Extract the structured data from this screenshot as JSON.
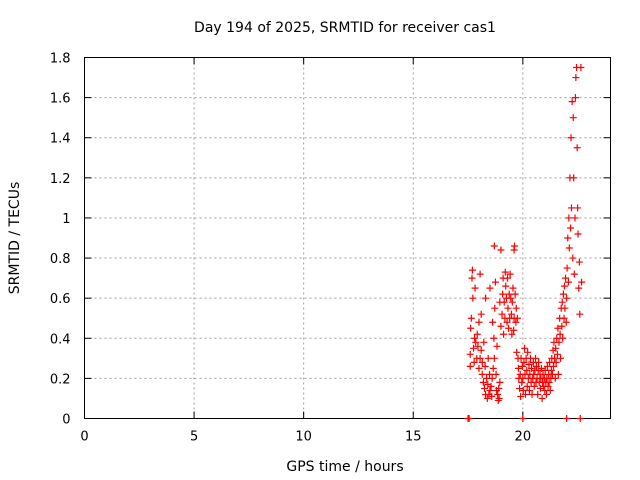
{
  "chart_data": {
    "type": "scatter",
    "title": "Day 194 of 2025, SRMTID for receiver cas1",
    "xlabel": "GPS time / hours",
    "ylabel": "SRMTID / TECUs",
    "xlim": [
      0,
      24
    ],
    "ylim": [
      0,
      1.8
    ],
    "xticks": [
      0,
      5,
      10,
      15,
      20
    ],
    "yticks": [
      0,
      0.2,
      0.4,
      0.6,
      0.8,
      1,
      1.2,
      1.4,
      1.6,
      1.8
    ],
    "xtick_labels": [
      "0",
      "5",
      "10",
      "15",
      "20"
    ],
    "ytick_labels": [
      "0",
      "0.2",
      "0.4",
      "0.6",
      "0.8",
      "1",
      "1.2",
      "1.4",
      "1.6",
      "1.8"
    ],
    "grid": true,
    "marker": "+",
    "series": [
      {
        "name": "cas1",
        "color": "#ff0000",
        "points": [
          [
            17.5,
            0.0
          ],
          [
            17.55,
            0.0
          ],
          [
            17.6,
            0.26
          ],
          [
            17.6,
            0.32
          ],
          [
            17.62,
            0.45
          ],
          [
            17.65,
            0.5
          ],
          [
            17.68,
            0.7
          ],
          [
            17.7,
            0.74
          ],
          [
            17.72,
            0.6
          ],
          [
            17.75,
            0.35
          ],
          [
            17.78,
            0.28
          ],
          [
            17.8,
            0.4
          ],
          [
            17.82,
            0.65
          ],
          [
            17.85,
            0.38
          ],
          [
            17.9,
            0.3
          ],
          [
            17.92,
            0.42
          ],
          [
            17.95,
            0.36
          ],
          [
            18.0,
            0.25
          ],
          [
            18.0,
            0.48
          ],
          [
            18.05,
            0.3
          ],
          [
            18.05,
            0.72
          ],
          [
            18.1,
            0.34
          ],
          [
            18.1,
            0.52
          ],
          [
            18.15,
            0.22
          ],
          [
            18.15,
            0.28
          ],
          [
            18.2,
            0.18
          ],
          [
            18.22,
            0.38
          ],
          [
            18.25,
            0.15
          ],
          [
            18.28,
            0.26
          ],
          [
            18.3,
            0.12
          ],
          [
            18.3,
            0.6
          ],
          [
            18.35,
            0.2
          ],
          [
            18.38,
            0.1
          ],
          [
            18.4,
            0.17
          ],
          [
            18.42,
            0.3
          ],
          [
            18.45,
            0.12
          ],
          [
            18.48,
            0.22
          ],
          [
            18.5,
            0.14
          ],
          [
            18.5,
            0.65
          ],
          [
            18.55,
            0.16
          ],
          [
            18.58,
            0.11
          ],
          [
            18.6,
            0.2
          ],
          [
            18.62,
            0.48
          ],
          [
            18.65,
            0.25
          ],
          [
            18.68,
            0.4
          ],
          [
            18.7,
            0.3
          ],
          [
            18.7,
            0.86
          ],
          [
            18.72,
            0.55
          ],
          [
            18.75,
            0.68
          ],
          [
            18.78,
            0.22
          ],
          [
            18.8,
            0.14
          ],
          [
            18.82,
            0.36
          ],
          [
            18.85,
            0.12
          ],
          [
            18.88,
            0.09
          ],
          [
            18.9,
            0.15
          ],
          [
            18.92,
            0.1
          ],
          [
            18.95,
            0.18
          ],
          [
            18.95,
            0.58
          ],
          [
            19.0,
            0.46
          ],
          [
            19.0,
            0.84
          ],
          [
            19.05,
            0.52
          ],
          [
            19.08,
            0.62
          ],
          [
            19.1,
            0.7
          ],
          [
            19.12,
            0.42
          ],
          [
            19.15,
            0.58
          ],
          [
            19.18,
            0.5
          ],
          [
            19.2,
            0.73
          ],
          [
            19.22,
            0.66
          ],
          [
            19.25,
            0.6
          ],
          [
            19.28,
            0.48
          ],
          [
            19.3,
            0.7
          ],
          [
            19.32,
            0.55
          ],
          [
            19.35,
            0.45
          ],
          [
            19.38,
            0.62
          ],
          [
            19.4,
            0.5
          ],
          [
            19.42,
            0.72
          ],
          [
            19.45,
            0.6
          ],
          [
            19.48,
            0.52
          ],
          [
            19.5,
            0.42
          ],
          [
            19.52,
            0.58
          ],
          [
            19.55,
            0.65
          ],
          [
            19.58,
            0.44
          ],
          [
            19.6,
            0.5
          ],
          [
            19.6,
            0.84
          ],
          [
            19.62,
            0.86
          ],
          [
            19.65,
            0.62
          ],
          [
            19.68,
            0.48
          ],
          [
            19.7,
            0.55
          ],
          [
            19.72,
            0.33
          ],
          [
            19.75,
            0.5
          ],
          [
            19.78,
            0.3
          ],
          [
            19.8,
            0.25
          ],
          [
            19.82,
            0.2
          ],
          [
            19.85,
            0.15
          ],
          [
            19.88,
            0.22
          ],
          [
            19.9,
            0.11
          ],
          [
            19.92,
            0.3
          ],
          [
            19.95,
            0.18
          ],
          [
            19.98,
            0.26
          ],
          [
            20.0,
            0.0
          ],
          [
            20.0,
            0.2
          ],
          [
            20.02,
            0.14
          ],
          [
            20.05,
            0.28
          ],
          [
            20.08,
            0.35
          ],
          [
            20.1,
            0.22
          ],
          [
            20.12,
            0.12
          ],
          [
            20.15,
            0.3
          ],
          [
            20.18,
            0.24
          ],
          [
            20.2,
            0.16
          ],
          [
            20.22,
            0.33
          ],
          [
            20.25,
            0.2
          ],
          [
            20.28,
            0.27
          ],
          [
            20.3,
            0.14
          ],
          [
            20.32,
            0.22
          ],
          [
            20.35,
            0.3
          ],
          [
            20.38,
            0.18
          ],
          [
            20.4,
            0.25
          ],
          [
            20.42,
            0.12
          ],
          [
            20.45,
            0.2
          ],
          [
            20.48,
            0.28
          ],
          [
            20.5,
            0.22
          ],
          [
            20.52,
            0.16
          ],
          [
            20.55,
            0.24
          ],
          [
            20.58,
            0.3
          ],
          [
            20.6,
            0.18
          ],
          [
            20.62,
            0.26
          ],
          [
            20.65,
            0.2
          ],
          [
            20.68,
            0.12
          ],
          [
            20.7,
            0.24
          ],
          [
            20.72,
            0.28
          ],
          [
            20.75,
            0.18
          ],
          [
            20.78,
            0.22
          ],
          [
            20.8,
            0.15
          ],
          [
            20.82,
            0.2
          ],
          [
            20.85,
            0.25
          ],
          [
            20.88,
            0.1
          ],
          [
            20.9,
            0.18
          ],
          [
            20.92,
            0.22
          ],
          [
            20.95,
            0.16
          ],
          [
            20.98,
            0.2
          ],
          [
            21.0,
            0.14
          ],
          [
            21.02,
            0.24
          ],
          [
            21.05,
            0.18
          ],
          [
            21.08,
            0.12
          ],
          [
            21.1,
            0.2
          ],
          [
            21.12,
            0.26
          ],
          [
            21.15,
            0.16
          ],
          [
            21.18,
            0.22
          ],
          [
            21.2,
            0.18
          ],
          [
            21.22,
            0.28
          ],
          [
            21.25,
            0.14
          ],
          [
            21.28,
            0.2
          ],
          [
            21.3,
            0.24
          ],
          [
            21.32,
            0.3
          ],
          [
            21.35,
            0.22
          ],
          [
            21.38,
            0.34
          ],
          [
            21.4,
            0.26
          ],
          [
            21.42,
            0.38
          ],
          [
            21.45,
            0.3
          ],
          [
            21.48,
            0.2
          ],
          [
            21.5,
            0.35
          ],
          [
            21.52,
            0.28
          ],
          [
            21.55,
            0.4
          ],
          [
            21.58,
            0.32
          ],
          [
            21.6,
            0.45
          ],
          [
            21.62,
            0.22
          ],
          [
            21.65,
            0.38
          ],
          [
            21.68,
            0.5
          ],
          [
            21.7,
            0.42
          ],
          [
            21.72,
            0.3
          ],
          [
            21.75,
            0.55
          ],
          [
            21.78,
            0.46
          ],
          [
            21.8,
            0.58
          ],
          [
            21.82,
            0.4
          ],
          [
            21.85,
            0.62
          ],
          [
            21.88,
            0.5
          ],
          [
            21.9,
            0.66
          ],
          [
            21.92,
            0.55
          ],
          [
            21.95,
            0.7
          ],
          [
            21.98,
            0.48
          ],
          [
            22.0,
            0.0
          ],
          [
            22.0,
            0.6
          ],
          [
            22.02,
            0.75
          ],
          [
            22.05,
            0.9
          ],
          [
            22.08,
            0.68
          ],
          [
            22.1,
            1.0
          ],
          [
            22.12,
            0.85
          ],
          [
            22.15,
            1.2
          ],
          [
            22.18,
            0.95
          ],
          [
            22.2,
            1.4
          ],
          [
            22.22,
            1.05
          ],
          [
            22.25,
            1.58
          ],
          [
            22.28,
            0.8
          ],
          [
            22.3,
            1.5
          ],
          [
            22.32,
            1.2
          ],
          [
            22.35,
            0.72
          ],
          [
            22.38,
            1.0
          ],
          [
            22.4,
            1.6
          ],
          [
            22.42,
            1.7
          ],
          [
            22.45,
            1.75
          ],
          [
            22.48,
            1.35
          ],
          [
            22.5,
            1.05
          ],
          [
            22.52,
            0.92
          ],
          [
            22.55,
            0.65
          ],
          [
            22.58,
            0.78
          ],
          [
            22.6,
            0.52
          ],
          [
            22.62,
            0.0
          ],
          [
            22.65,
            1.75
          ],
          [
            22.68,
            0.68
          ]
        ]
      }
    ]
  }
}
